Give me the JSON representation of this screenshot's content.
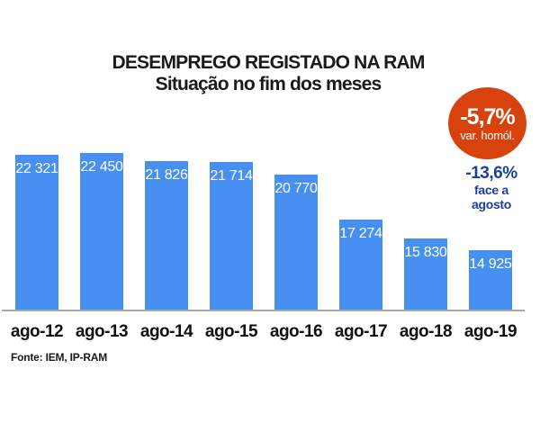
{
  "header": {
    "title": "DESEMPREGO REGISTADO NA RAM",
    "subtitle": "Situação no fim dos meses"
  },
  "badge": {
    "value": "-5,7%",
    "label": "var. homól.",
    "bg_color": "#d8430d",
    "text_color": "#ffffff"
  },
  "note": {
    "value": "-13,6%",
    "line1": "face a",
    "line2": "agosto",
    "color": "#1d3f9b"
  },
  "source": "Fonte: IEM, IP-RAM",
  "chart_data": {
    "type": "bar",
    "title": "DESEMPREGO REGISTADO NA RAM",
    "subtitle": "Situação no fim dos meses",
    "categories": [
      "ago-12",
      "ago-13",
      "ago-14",
      "ago-15",
      "ago-16",
      "ago-17",
      "ago-18",
      "ago-19"
    ],
    "values": [
      22321,
      22450,
      21826,
      21714,
      20770,
      17274,
      15830,
      14925
    ],
    "value_labels": [
      "22 321",
      "22 450",
      "21 826",
      "21 714",
      "20 770",
      "17 274",
      "15 830",
      "14 925"
    ],
    "bar_color": "#478ff0",
    "value_label_color": "#ffffff",
    "axis_line_color": "#a6a6a6",
    "ylim": [
      10300,
      22500
    ],
    "grid": false,
    "legend": null,
    "annotations": [
      {
        "text": "-5,7%",
        "subtext": "var. homól.",
        "style": "orange-circle"
      },
      {
        "text": "-13,6%",
        "subtext": "face a agosto",
        "style": "blue-text"
      }
    ]
  }
}
